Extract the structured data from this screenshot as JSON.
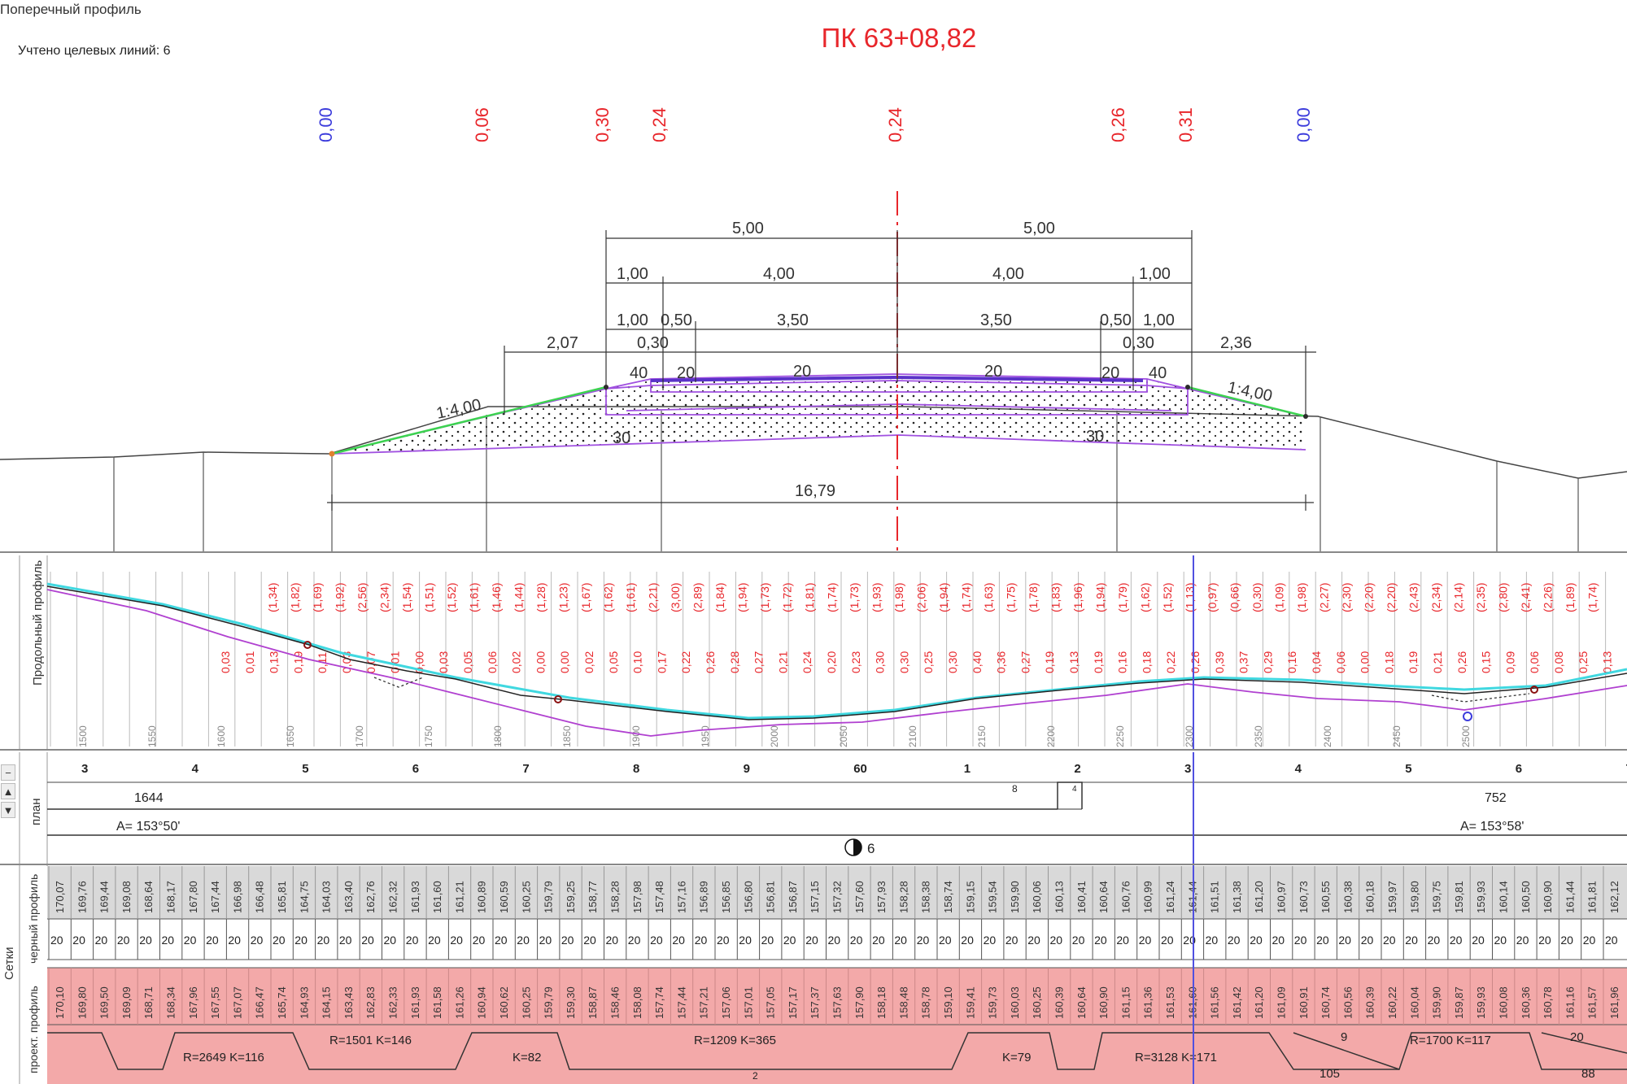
{
  "window": {
    "title": "Поперечный профиль"
  },
  "info": {
    "lines_count_label": "Учтено целевых линий: 6"
  },
  "station": {
    "label": "ПК 63+08,82"
  },
  "top_marks": [
    {
      "label": "0,00",
      "color": "#3c3cdc"
    },
    {
      "label": "0,06",
      "color": "#e8262b"
    },
    {
      "label": "0,30",
      "color": "#e8262b"
    },
    {
      "label": "0,24",
      "color": "#e8262b"
    },
    {
      "label": "0,24",
      "color": "#e8262b"
    },
    {
      "label": "0,26",
      "color": "#e8262b"
    },
    {
      "label": "0,31",
      "color": "#e8262b"
    },
    {
      "label": "0,00",
      "color": "#3c3cdc"
    }
  ],
  "dimensions": {
    "half_left": "5,00",
    "half_right": "5,00",
    "lane_left": "4,00",
    "lane_right": "4,00",
    "shoulder_left": "1,00",
    "shoulder_right": "1,00",
    "inner_left": "1,00",
    "inner_right": "1,00",
    "strip_left": "0,50",
    "strip_right": "0,50",
    "carriage_left": "3,50",
    "carriage_right": "3,50",
    "slope_width_left": "2,07",
    "slope_width_right": "2,36",
    "berm_left": "0,30",
    "berm_right": "0,30",
    "crossfall_left": "20",
    "crossfall_right": "20",
    "crossfall_edge_left": "20",
    "crossfall_edge_right": "20",
    "shoulder_fall_left": "40",
    "shoulder_fall_right": "40",
    "slope_ratio_left": "1:4,00",
    "slope_ratio_right": "1:4,00",
    "base_fall_left": "30",
    "base_fall_right": "30",
    "total_width": "16,79"
  },
  "long_profile": {
    "panel_label": "Продольный профиль",
    "red_values": [
      "(1,34)",
      "(1,82)",
      "(1,69)",
      "(1,92)",
      "(2,56)",
      "(2,34)",
      "(1,54)",
      "(1,51)",
      "(1,52)",
      "(1,61)",
      "(1,46)",
      "(1,44)",
      "(1,28)",
      "(1,23)",
      "(1,67)",
      "(1,62)",
      "(1,61)",
      "(2,21)",
      "(3,00)",
      "(2,89)",
      "(1,84)",
      "(1,94)",
      "(1,73)",
      "(1,72)",
      "(1,81)",
      "(1,74)",
      "(1,73)",
      "(1,93)",
      "(1,98)",
      "(2,06)",
      "(1,94)",
      "(1,74)",
      "(1,63)",
      "(1,75)",
      "(1,78)",
      "(1,83)",
      "(1,96)",
      "(1,94)",
      "(1,79)",
      "(1,62)",
      "(1,52)",
      "(1,13)",
      "(0,97)",
      "(0,66)",
      "(0,30)",
      "(1,09)",
      "(1,98)",
      "(2,27)",
      "(2,30)",
      "(2,20)",
      "(2,20)",
      "(2,43)",
      "(2,34)",
      "(2,14)",
      "(2,35)",
      "(2,80)",
      "(2,41)",
      "(2,26)",
      "(1,89)",
      "(1,74)"
    ],
    "low_values": [
      "0,03",
      "0,01",
      "0,13",
      "0,19",
      "0,11",
      "0,03",
      "0,07",
      "0,01",
      "0,00",
      "0,03",
      "0,05",
      "0,06",
      "0,02",
      "0,00",
      "0,00",
      "0,02",
      "0,05",
      "0,10",
      "0,17",
      "0,22",
      "0,26",
      "0,28",
      "0,27",
      "0,21",
      "0,24",
      "0,20",
      "0,23",
      "0,30",
      "0,30",
      "0,25",
      "0,30",
      "0,40",
      "0,36",
      "0,27",
      "0,19",
      "0,13",
      "0,19",
      "0,16",
      "0,18",
      "0,22",
      "0,26",
      "0,39",
      "0,37",
      "0,29",
      "0,16",
      "0,04",
      "0,06",
      "0,00",
      "0,18",
      "0,19",
      "0,21",
      "0,26",
      "0,15",
      "0,09",
      "0,06",
      "0,08",
      "0,25",
      "0,13"
    ],
    "station_ticks": [
      "1500",
      "1550",
      "1600",
      "1650",
      "1700",
      "1750",
      "1800",
      "1850",
      "1900",
      "1950",
      "2000",
      "2050",
      "2100",
      "2150",
      "2200",
      "2250",
      "2300",
      "2350",
      "2400",
      "2450",
      "2500"
    ]
  },
  "plan": {
    "panel_label": "план",
    "pickets": [
      "3",
      "4",
      "5",
      "6",
      "7",
      "8",
      "9",
      "60",
      "1",
      "2",
      "3",
      "4",
      "5",
      "6",
      "7"
    ],
    "segment_left_length": "1644",
    "segment_right_length": "752",
    "azimuth_left": "A= 153°50'",
    "azimuth_right": "A= 153°58'",
    "marker_small": "8",
    "marker_small2": "4",
    "point_label": "6"
  },
  "grids": {
    "panel_label": "Сетки",
    "black_label": "черный профиль",
    "design_label": "проект. профиль",
    "black_values": [
      "170,07",
      "169,76",
      "169,44",
      "169,08",
      "168,64",
      "168,17",
      "167,80",
      "167,44",
      "166,98",
      "166,48",
      "165,81",
      "164,75",
      "164,03",
      "163,40",
      "162,76",
      "162,32",
      "161,93",
      "161,60",
      "161,21",
      "160,89",
      "160,59",
      "160,25",
      "159,79",
      "159,25",
      "158,77",
      "158,28",
      "157,98",
      "157,48",
      "157,16",
      "156,89",
      "156,85",
      "156,80",
      "156,81",
      "156,87",
      "157,15",
      "157,32",
      "157,60",
      "157,93",
      "158,28",
      "158,38",
      "158,74",
      "159,15",
      "159,54",
      "159,90",
      "160,06",
      "160,13",
      "160,41",
      "160,64",
      "160,76",
      "160,99",
      "161,24",
      "161,44",
      "161,51",
      "161,38",
      "161,20",
      "160,97",
      "160,73",
      "160,55",
      "160,38",
      "160,18",
      "159,97",
      "159,80",
      "159,75",
      "159,81",
      "159,93",
      "160,14",
      "160,50",
      "160,90",
      "161,44",
      "161,81",
      "162,12"
    ],
    "step": "20",
    "design_values": [
      "170,10",
      "169,80",
      "169,50",
      "169,09",
      "168,71",
      "168,34",
      "167,96",
      "167,55",
      "167,07",
      "166,47",
      "165,74",
      "164,93",
      "164,15",
      "163,43",
      "162,83",
      "162,33",
      "161,93",
      "161,58",
      "161,26",
      "160,94",
      "160,62",
      "160,25",
      "159,79",
      "159,30",
      "158,87",
      "158,46",
      "158,08",
      "157,74",
      "157,44",
      "157,21",
      "157,06",
      "157,01",
      "157,05",
      "157,17",
      "157,37",
      "157,63",
      "157,90",
      "158,18",
      "158,48",
      "158,78",
      "159,10",
      "159,41",
      "159,73",
      "160,03",
      "160,25",
      "160,39",
      "160,64",
      "160,90",
      "161,15",
      "161,36",
      "161,53",
      "161,60",
      "161,56",
      "161,42",
      "161,20",
      "161,09",
      "160,91",
      "160,74",
      "160,56",
      "160,39",
      "160,22",
      "160,04",
      "159,90",
      "159,87",
      "159,93",
      "160,08",
      "160,36",
      "160,78",
      "161,16",
      "161,57",
      "161,96"
    ],
    "curves": [
      {
        "label": "R=2649 K=116"
      },
      {
        "label": "R=1501 K=146"
      },
      {
        "label": "K=82"
      },
      {
        "label": "R=1209   K=365"
      },
      {
        "label": "K=79"
      },
      {
        "label": "R=3128 K=171"
      },
      {
        "label": "9"
      },
      {
        "label": "105"
      },
      {
        "label": "R=1700 K=117"
      },
      {
        "label": "20"
      },
      {
        "label": "88"
      },
      {
        "label": "2"
      }
    ]
  },
  "side_buttons": {
    "minus": "−",
    "up": "▲",
    "down": "▼"
  },
  "colors": {
    "red": "#e8262b",
    "blue": "#3c3cdc",
    "violet": "#a050e0",
    "cyan": "#40d8e0",
    "green": "#3cd250",
    "pink": "#f3a9a9"
  }
}
